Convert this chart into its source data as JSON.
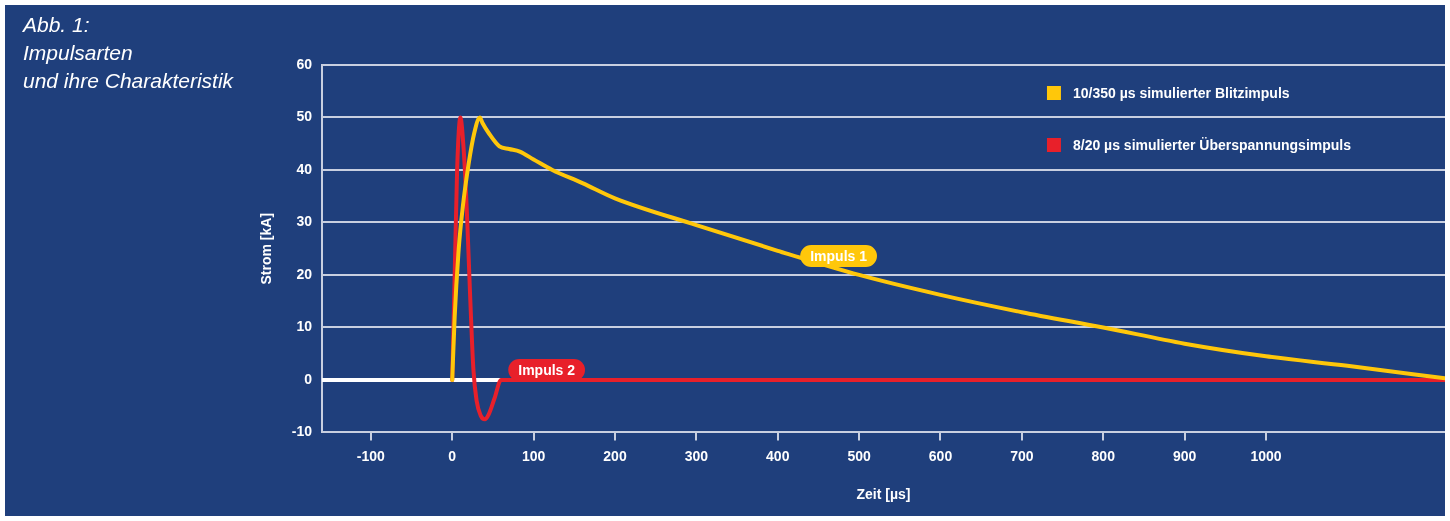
{
  "chart_data": {
    "type": "line",
    "title": "Abb. 1:\nImpulsarten\nund ihre Charakteristik",
    "xlabel": "Zeit [µs]",
    "ylabel": "Strom [kA]",
    "xlim": [
      -160,
      1220
    ],
    "xticks": [
      -100,
      0,
      100,
      200,
      300,
      400,
      500,
      600,
      700,
      800,
      900,
      1000
    ],
    "ylim": [
      -10,
      60
    ],
    "yticks": [
      -10,
      0,
      10,
      20,
      30,
      40,
      50,
      60
    ],
    "grid": "y",
    "legend": "top right",
    "marker": "none",
    "line_style": "solid",
    "ref_lines": [
      {
        "axis": "y",
        "value": 0,
        "color": "#ffffff"
      }
    ],
    "annotations": [
      "Impuls 1",
      "Impuls 2"
    ],
    "series": [
      {
        "name": "10/350 µs simulierter Blitzimpuls",
        "color": "#ffc70a",
        "x": [
          0,
          3,
          8,
          13,
          20,
          27,
          34,
          37,
          45,
          58,
          70,
          83,
          100,
          123,
          160,
          200,
          300,
          400,
          500,
          600,
          700,
          800,
          900,
          1000,
          1100,
          1220
        ],
        "values": [
          0,
          12,
          25,
          33,
          41,
          47,
          50,
          49,
          47,
          44.5,
          44,
          43.5,
          42,
          40,
          37.5,
          34.6,
          29.5,
          24.6,
          20,
          16.2,
          12.9,
          10,
          6.9,
          4.5,
          2.7,
          0.3
        ]
      },
      {
        "name": "8/20 µs simulierter Überspannungsimpuls",
        "color": "#e8202a",
        "x": [
          0,
          3,
          6,
          10,
          14,
          18,
          22,
          26,
          30,
          35,
          40,
          45,
          52,
          60,
          1220
        ],
        "values": [
          0,
          20,
          40,
          50,
          44,
          32,
          16,
          2,
          -4,
          -6.8,
          -7.5,
          -6.5,
          -3.5,
          0,
          0
        ]
      }
    ]
  }
}
